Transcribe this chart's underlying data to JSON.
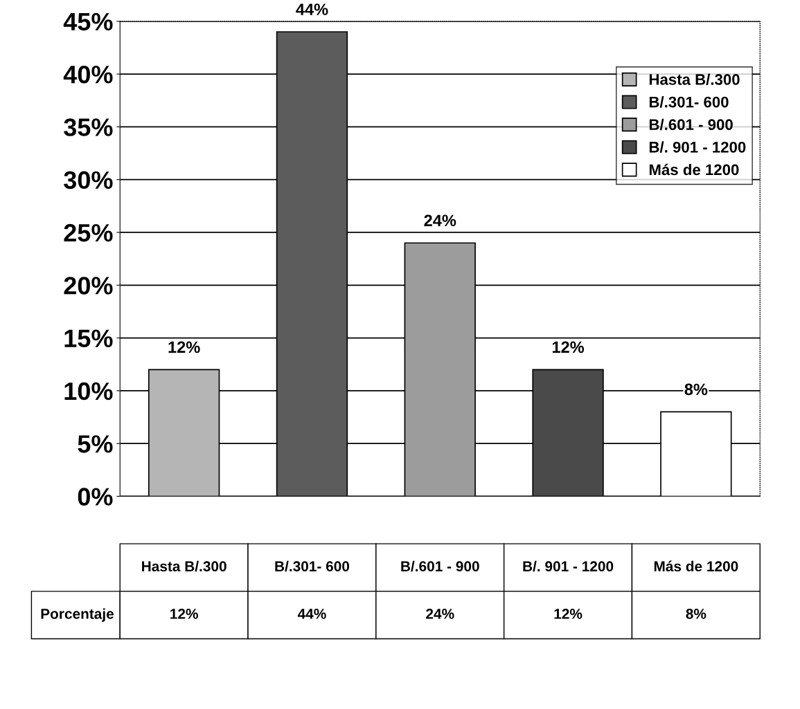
{
  "chart_data": {
    "type": "bar",
    "categories": [
      "Hasta B/.300",
      "B/.301- 600",
      "B/.601 - 900",
      "B/. 901 - 1200",
      "Más de 1200"
    ],
    "annotations": [
      "Porcentaje"
    ],
    "series": [
      {
        "name": "Hasta B/.300",
        "color": "#b5b5b5",
        "values": [
          12,
          null,
          null,
          null,
          null
        ],
        "value_labels": [
          "12%",
          null,
          null,
          null,
          null
        ]
      },
      {
        "name": "B/.301- 600",
        "color": "#5c5c5c",
        "values": [
          null,
          44,
          null,
          null,
          null
        ],
        "value_labels": [
          null,
          "44%",
          null,
          null,
          null
        ]
      },
      {
        "name": "B/.601 - 900",
        "color": "#9c9c9c",
        "values": [
          null,
          null,
          24,
          null,
          null
        ],
        "value_labels": [
          null,
          null,
          "24%",
          null,
          null
        ]
      },
      {
        "name": "B/. 901 - 1200",
        "color": "#4a4a4a",
        "values": [
          null,
          null,
          null,
          12,
          null
        ],
        "value_labels": [
          null,
          null,
          null,
          "12%",
          null
        ]
      },
      {
        "name": "Más de 1200",
        "color": "#ffffff",
        "values": [
          null,
          null,
          null,
          null,
          8
        ],
        "value_labels": [
          null,
          null,
          null,
          null,
          "8%"
        ]
      }
    ],
    "ylim": [
      0,
      45
    ],
    "yticks": [
      {
        "value": 0,
        "label": "0%"
      },
      {
        "value": 5,
        "label": "5%"
      },
      {
        "value": 10,
        "label": "10%"
      },
      {
        "value": 15,
        "label": "15%"
      },
      {
        "value": 20,
        "label": "20%"
      },
      {
        "value": 25,
        "label": "25%"
      },
      {
        "value": 30,
        "label": "30%"
      },
      {
        "value": 35,
        "label": "35%"
      },
      {
        "value": 40,
        "label": "40%"
      },
      {
        "value": 45,
        "label": "45%"
      }
    ],
    "grid": "y",
    "legend": "top right"
  }
}
